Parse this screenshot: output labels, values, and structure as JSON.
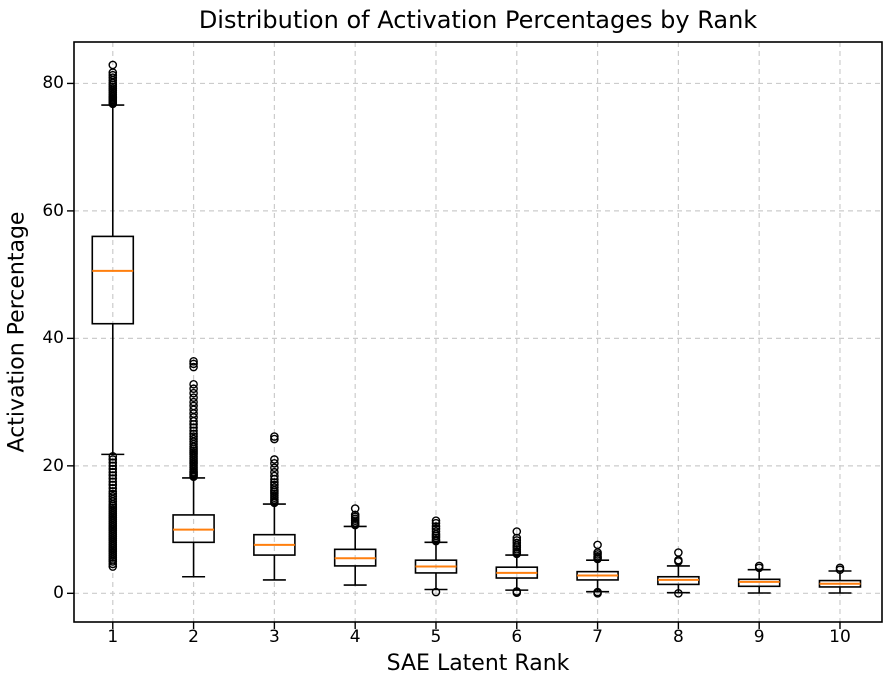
{
  "chart_data": {
    "type": "boxplot",
    "title": "Distribution of Activation Percentages by Rank",
    "xlabel": "SAE Latent Rank",
    "ylabel": "Activation Percentage",
    "categories": [
      "1",
      "2",
      "3",
      "4",
      "5",
      "6",
      "7",
      "8",
      "9",
      "10"
    ],
    "yticks": [
      0,
      20,
      40,
      60,
      80
    ],
    "ylim": [
      -4.5,
      86.5
    ],
    "xlim": [
      0.52,
      10.52
    ],
    "grid": true,
    "legend": "none",
    "colors": {
      "median": "#ff7f0e",
      "box": "#000000",
      "whisker": "#000000",
      "flier": "#000000",
      "grid": "#cccccc",
      "spine": "#000000",
      "background": "#ffffff"
    },
    "boxes": [
      {
        "rank": "1",
        "whislo": 21.8,
        "q1": 42.3,
        "med": 50.6,
        "q3": 56.0,
        "whishi": 76.6,
        "fliers_high": [
          76.8,
          77.0,
          77.2,
          77.4,
          77.6,
          77.8,
          78.0,
          78.3,
          78.6,
          78.9,
          79.2,
          79.5,
          79.8,
          80.1,
          80.5,
          80.9,
          81.3,
          81.7,
          82.9
        ],
        "fliers_low": [
          4.2,
          4.6,
          5.0,
          5.3,
          5.6,
          5.9,
          6.2,
          6.5,
          6.8,
          7.1,
          7.4,
          7.7,
          8.0,
          8.3,
          8.6,
          8.9,
          9.2,
          9.5,
          9.8,
          10.1,
          10.4,
          10.7,
          11.0,
          11.3,
          11.6,
          11.9,
          12.2,
          12.5,
          12.8,
          13.1,
          13.4,
          13.7,
          14.0,
          14.4,
          14.8,
          15.2,
          15.6,
          16.0,
          16.5,
          17.0,
          17.5,
          18.0,
          18.5,
          19.0,
          19.5,
          20.0,
          20.5,
          21.0,
          21.5
        ]
      },
      {
        "rank": "2",
        "whislo": 2.6,
        "q1": 8.0,
        "med": 10.0,
        "q3": 12.3,
        "whishi": 18.1,
        "fliers_high": [
          18.3,
          18.5,
          18.7,
          18.9,
          19.1,
          19.4,
          19.7,
          20.0,
          20.3,
          20.6,
          20.9,
          21.2,
          21.5,
          21.8,
          22.1,
          22.4,
          22.7,
          23.0,
          23.4,
          23.8,
          24.2,
          24.6,
          25.0,
          25.5,
          26.0,
          26.5,
          27.0,
          27.6,
          28.2,
          28.8,
          29.4,
          30.0,
          30.7,
          31.4,
          32.1,
          32.8,
          35.5,
          36.0,
          36.4
        ],
        "fliers_low": []
      },
      {
        "rank": "3",
        "whislo": 2.1,
        "q1": 6.0,
        "med": 7.6,
        "q3": 9.2,
        "whishi": 14.0,
        "fliers_high": [
          14.2,
          14.4,
          14.7,
          15.0,
          15.3,
          15.6,
          15.9,
          16.2,
          16.6,
          17.0,
          17.4,
          17.9,
          18.4,
          19.0,
          19.7,
          20.4,
          21.0,
          24.2,
          24.6
        ],
        "fliers_low": []
      },
      {
        "rank": "4",
        "whislo": 1.3,
        "q1": 4.3,
        "med": 5.5,
        "q3": 6.9,
        "whishi": 10.5,
        "fliers_high": [
          10.7,
          10.9,
          11.1,
          11.4,
          11.7,
          12.0,
          12.3,
          13.3
        ],
        "fliers_low": []
      },
      {
        "rank": "5",
        "whislo": 0.6,
        "q1": 3.2,
        "med": 4.2,
        "q3": 5.2,
        "whishi": 8.0,
        "fliers_high": [
          8.2,
          8.4,
          8.7,
          9.0,
          9.3,
          9.7,
          10.1,
          10.5,
          11.0,
          11.4
        ],
        "fliers_low": [
          0.2
        ]
      },
      {
        "rank": "6",
        "whislo": 0.5,
        "q1": 2.4,
        "med": 3.2,
        "q3": 4.1,
        "whishi": 6.0,
        "fliers_high": [
          6.2,
          6.4,
          6.6,
          6.9,
          7.2,
          7.5,
          7.9,
          8.3,
          8.7,
          9.7
        ],
        "fliers_low": [
          0.1,
          0.3
        ]
      },
      {
        "rank": "7",
        "whislo": 0.25,
        "q1": 2.1,
        "med": 2.8,
        "q3": 3.4,
        "whishi": 5.2,
        "fliers_high": [
          5.4,
          5.6,
          5.8,
          6.1,
          6.4,
          7.6
        ],
        "fliers_low": [
          0.0,
          0.2
        ]
      },
      {
        "rank": "8",
        "whislo": 0.1,
        "q1": 1.4,
        "med": 2.1,
        "q3": 2.6,
        "whishi": 4.3,
        "fliers_high": [
          5.0,
          5.2,
          6.4
        ],
        "fliers_low": [
          0.0
        ]
      },
      {
        "rank": "9",
        "whislo": 0.05,
        "q1": 1.1,
        "med": 1.8,
        "q3": 2.2,
        "whishi": 3.7,
        "fliers_high": [
          4.0,
          4.3
        ],
        "fliers_low": []
      },
      {
        "rank": "10",
        "whislo": 0.05,
        "q1": 1.0,
        "med": 1.5,
        "q3": 2.0,
        "whishi": 3.5,
        "fliers_high": [
          3.7,
          4.0
        ],
        "fliers_low": []
      }
    ]
  }
}
